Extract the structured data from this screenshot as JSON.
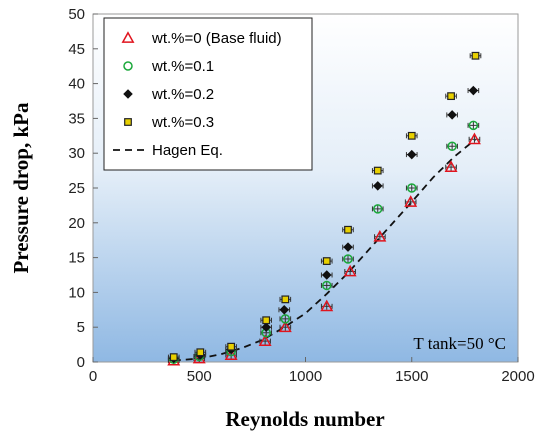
{
  "chart_data": {
    "type": "scatter",
    "xlabel": "Reynolds number",
    "ylabel": "Pressure drop, kPa",
    "xlim": [
      0,
      2000
    ],
    "ylim": [
      0,
      50
    ],
    "xticks": [
      0,
      500,
      1000,
      1500,
      2000
    ],
    "yticks": [
      0,
      5,
      10,
      15,
      20,
      25,
      30,
      35,
      40,
      45,
      50
    ],
    "grid": false,
    "legend": "top-left",
    "background": "vertical gradient, white to light blue",
    "series": [
      {
        "name": "wt.%=0 (Base fluid)",
        "marker": "triangle-open",
        "color": "#e0141e",
        "x": [
          380,
          500,
          650,
          810,
          905,
          1100,
          1210,
          1350,
          1495,
          1685,
          1795
        ],
        "y": [
          0.2,
          0.5,
          1.0,
          3.0,
          5.0,
          8.0,
          13.0,
          18.0,
          23.0,
          28.0,
          32.0
        ]
      },
      {
        "name": "wt.%=0.1",
        "marker": "circle-open",
        "color": "#1aa83a",
        "x": [
          380,
          500,
          650,
          815,
          905,
          1100,
          1200,
          1340,
          1500,
          1690,
          1790
        ],
        "y": [
          0.4,
          0.8,
          1.5,
          4.2,
          6.2,
          11.0,
          14.8,
          22.0,
          25.0,
          31.0,
          34.0
        ]
      },
      {
        "name": "wt.%=0.2",
        "marker": "diamond-filled",
        "color": "#111111",
        "x": [
          380,
          505,
          650,
          815,
          900,
          1100,
          1200,
          1340,
          1500,
          1690,
          1790
        ],
        "y": [
          0.5,
          1.0,
          1.8,
          5.0,
          7.5,
          12.5,
          16.5,
          25.3,
          29.8,
          35.5,
          39.0
        ]
      },
      {
        "name": "wt.%=0.3",
        "marker": "square-yellow",
        "color": "#e8d000",
        "x": [
          380,
          505,
          650,
          815,
          905,
          1100,
          1200,
          1340,
          1500,
          1685,
          1800
        ],
        "y": [
          0.7,
          1.4,
          2.2,
          6.0,
          9.0,
          14.5,
          19.0,
          27.5,
          32.5,
          38.2,
          44.0
        ]
      },
      {
        "name": "Hagen Eq.",
        "style": "dashed-line",
        "color": "#111111",
        "x": [
          380,
          500,
          600,
          700,
          800,
          900,
          1000,
          1100,
          1200,
          1300,
          1400,
          1500,
          1600,
          1700,
          1800
        ],
        "y": [
          0.2,
          0.5,
          1.1,
          2.0,
          3.2,
          5.0,
          7.0,
          9.8,
          12.8,
          16.2,
          19.6,
          23.0,
          26.5,
          29.5,
          32.0
        ]
      }
    ],
    "error_bar_x": 50,
    "error_bar_y": 0.5,
    "annotation": "T tank=50 °C"
  }
}
